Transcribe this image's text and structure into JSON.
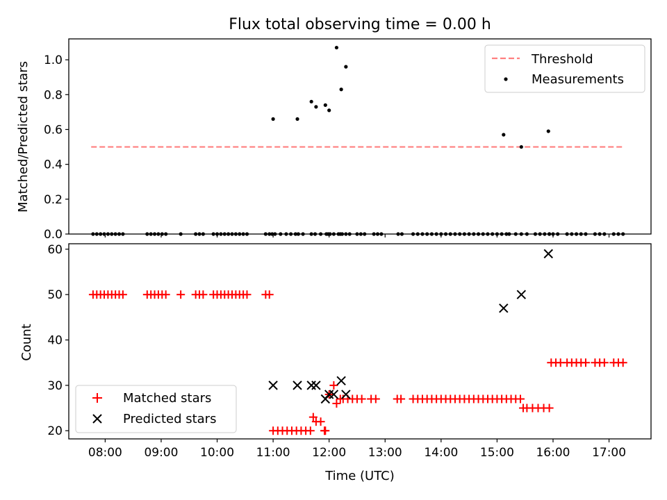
{
  "figure": {
    "title": "Flux total observing time = 0.00 h"
  },
  "chart_data": [
    {
      "type": "scatter",
      "title": "Flux total observing time = 0.00 h",
      "xlabel": "",
      "ylabel": "Matched/Predicted stars",
      "xlim_hours": [
        7.35,
        17.75
      ],
      "ylim": [
        0,
        1.12
      ],
      "yticks": [
        0.0,
        0.2,
        0.4,
        0.6,
        0.8,
        1.0
      ],
      "ytick_labels": [
        "0.0",
        "0.2",
        "0.4",
        "0.6",
        "0.8",
        "1.0"
      ],
      "grid": false,
      "legend": {
        "position": "top-right",
        "entries": [
          "Threshold",
          "Measurements"
        ]
      },
      "threshold": {
        "name": "Threshold",
        "x": [
          "07:45",
          "17:15"
        ],
        "y": 0.5,
        "color": "#ff7f7f",
        "style": "dashed"
      },
      "series": [
        {
          "name": "Measurements",
          "color": "#000000",
          "x": [
            "07:47",
            "07:51",
            "07:55",
            "07:59",
            "08:03",
            "08:07",
            "08:11",
            "08:15",
            "08:19",
            "08:45",
            "08:49",
            "08:53",
            "08:57",
            "09:01",
            "09:05",
            "09:21",
            "09:37",
            "09:41",
            "09:45",
            "09:56",
            "10:00",
            "10:04",
            "10:08",
            "10:12",
            "10:16",
            "10:20",
            "10:24",
            "10:28",
            "10:32",
            "10:52",
            "10:56",
            "10:59",
            "11:02",
            "11:08",
            "11:14",
            "11:19",
            "11:24",
            "11:27",
            "11:32",
            "11:41",
            "11:45",
            "11:51",
            "11:57",
            "11:59",
            "12:01",
            "12:05",
            "12:10",
            "12:12",
            "12:14",
            "12:18",
            "12:22",
            "12:30",
            "12:34",
            "12:38",
            "12:48",
            "12:52",
            "12:56",
            "13:14",
            "13:18",
            "13:30",
            "13:35",
            "13:40",
            "13:45",
            "13:50",
            "13:55",
            "14:00",
            "14:05",
            "14:10",
            "14:15",
            "14:20",
            "14:25",
            "14:30",
            "14:35",
            "14:40",
            "14:45",
            "14:50",
            "14:55",
            "15:00",
            "15:05",
            "15:10",
            "15:13",
            "15:20",
            "15:26",
            "15:32",
            "15:41",
            "15:46",
            "15:51",
            "15:56",
            "15:56",
            "16:00",
            "16:05",
            "16:15",
            "16:20",
            "16:25",
            "16:30",
            "16:35",
            "16:45",
            "16:50",
            "16:55",
            "17:05",
            "17:10",
            "17:15",
            "11:00",
            "11:26",
            "11:41",
            "11:46",
            "11:56",
            "12:00",
            "12:08",
            "12:13",
            "12:18",
            "15:07",
            "15:26",
            "15:55"
          ],
          "y": [
            0,
            0,
            0,
            0,
            0,
            0,
            0,
            0,
            0,
            0,
            0,
            0,
            0,
            0,
            0,
            0,
            0,
            0,
            0,
            0,
            0,
            0,
            0,
            0,
            0,
            0,
            0,
            0,
            0,
            0,
            0,
            0,
            0,
            0,
            0,
            0,
            0,
            0,
            0,
            0,
            0,
            0,
            0,
            0,
            0,
            0,
            0,
            0,
            0,
            0,
            0,
            0,
            0,
            0,
            0,
            0,
            0,
            0,
            0,
            0,
            0,
            0,
            0,
            0,
            0,
            0,
            0,
            0,
            0,
            0,
            0,
            0,
            0,
            0,
            0,
            0,
            0,
            0,
            0,
            0,
            0,
            0,
            0,
            0,
            0,
            0,
            0,
            0,
            0,
            0,
            0,
            0,
            0,
            0,
            0,
            0,
            0,
            0,
            0,
            0,
            0,
            0,
            0.66,
            0.66,
            0.76,
            0.73,
            0.74,
            0.71,
            1.07,
            0.83,
            0.96,
            0.57,
            0.5,
            0.59
          ]
        }
      ]
    },
    {
      "type": "scatter",
      "xlabel": "Time (UTC)",
      "ylabel": "Count",
      "xlim_hours": [
        7.35,
        17.75
      ],
      "ylim": [
        18.2,
        61.2
      ],
      "yticks": [
        20,
        30,
        40,
        50,
        60
      ],
      "ytick_labels": [
        "20",
        "30",
        "40",
        "50",
        "60"
      ],
      "xticks": [
        "08:00",
        "09:00",
        "10:00",
        "11:00",
        "12:00",
        "13:00",
        "14:00",
        "15:00",
        "16:00",
        "17:00"
      ],
      "grid": false,
      "legend": {
        "position": "bottom-left",
        "entries": [
          "Matched stars",
          "Predicted stars"
        ]
      },
      "series": [
        {
          "name": "Matched stars",
          "marker": "+",
          "color": "#ff0000",
          "x": [
            "07:47",
            "07:51",
            "07:55",
            "07:59",
            "08:03",
            "08:07",
            "08:11",
            "08:15",
            "08:19",
            "08:45",
            "08:49",
            "08:53",
            "08:57",
            "09:01",
            "09:05",
            "09:21",
            "09:37",
            "09:41",
            "09:45",
            "09:56",
            "10:00",
            "10:04",
            "10:08",
            "10:12",
            "10:16",
            "10:20",
            "10:24",
            "10:28",
            "10:32",
            "10:52",
            "10:56",
            "11:00",
            "11:05",
            "11:10",
            "11:15",
            "11:20",
            "11:25",
            "11:30",
            "11:35",
            "11:40",
            "11:43",
            "11:46",
            "11:51",
            "11:55",
            "11:56",
            "12:00",
            "12:05",
            "12:08",
            "12:12",
            "12:15",
            "12:20",
            "12:25",
            "12:30",
            "12:35",
            "12:45",
            "12:50",
            "13:13",
            "13:17",
            "13:30",
            "13:35",
            "13:40",
            "13:45",
            "13:50",
            "13:55",
            "14:00",
            "14:05",
            "14:10",
            "14:15",
            "14:20",
            "14:25",
            "14:30",
            "14:35",
            "14:40",
            "14:45",
            "14:50",
            "14:55",
            "15:00",
            "15:05",
            "15:10",
            "15:15",
            "15:20",
            "15:25",
            "15:28",
            "15:32",
            "15:38",
            "15:44",
            "15:50",
            "15:56",
            "15:58",
            "16:03",
            "16:08",
            "16:15",
            "16:20",
            "16:25",
            "16:30",
            "16:35",
            "16:45",
            "16:50",
            "16:55",
            "17:05",
            "17:10",
            "17:15"
          ],
          "y": [
            50,
            50,
            50,
            50,
            50,
            50,
            50,
            50,
            50,
            50,
            50,
            50,
            50,
            50,
            50,
            50,
            50,
            50,
            50,
            50,
            50,
            50,
            50,
            50,
            50,
            50,
            50,
            50,
            50,
            50,
            50,
            20,
            20,
            20,
            20,
            20,
            20,
            20,
            20,
            20,
            23,
            22,
            22,
            20,
            20,
            28,
            30,
            26,
            27,
            27,
            27,
            27,
            27,
            27,
            27,
            27,
            27,
            27,
            27,
            27,
            27,
            27,
            27,
            27,
            27,
            27,
            27,
            27,
            27,
            27,
            27,
            27,
            27,
            27,
            27,
            27,
            27,
            27,
            27,
            27,
            27,
            27,
            25,
            25,
            25,
            25,
            25,
            25,
            35,
            35,
            35,
            35,
            35,
            35,
            35,
            35,
            35,
            35,
            35,
            35,
            35,
            35
          ]
        },
        {
          "name": "Predicted stars",
          "marker": "x",
          "color": "#000000",
          "x": [
            "11:00",
            "11:26",
            "11:41",
            "11:46",
            "11:56",
            "12:00",
            "12:05",
            "12:13",
            "12:18",
            "15:07",
            "15:26",
            "15:55"
          ],
          "y": [
            30,
            30,
            30,
            30,
            27,
            28,
            28,
            31,
            28,
            47,
            50,
            59
          ]
        }
      ]
    }
  ]
}
